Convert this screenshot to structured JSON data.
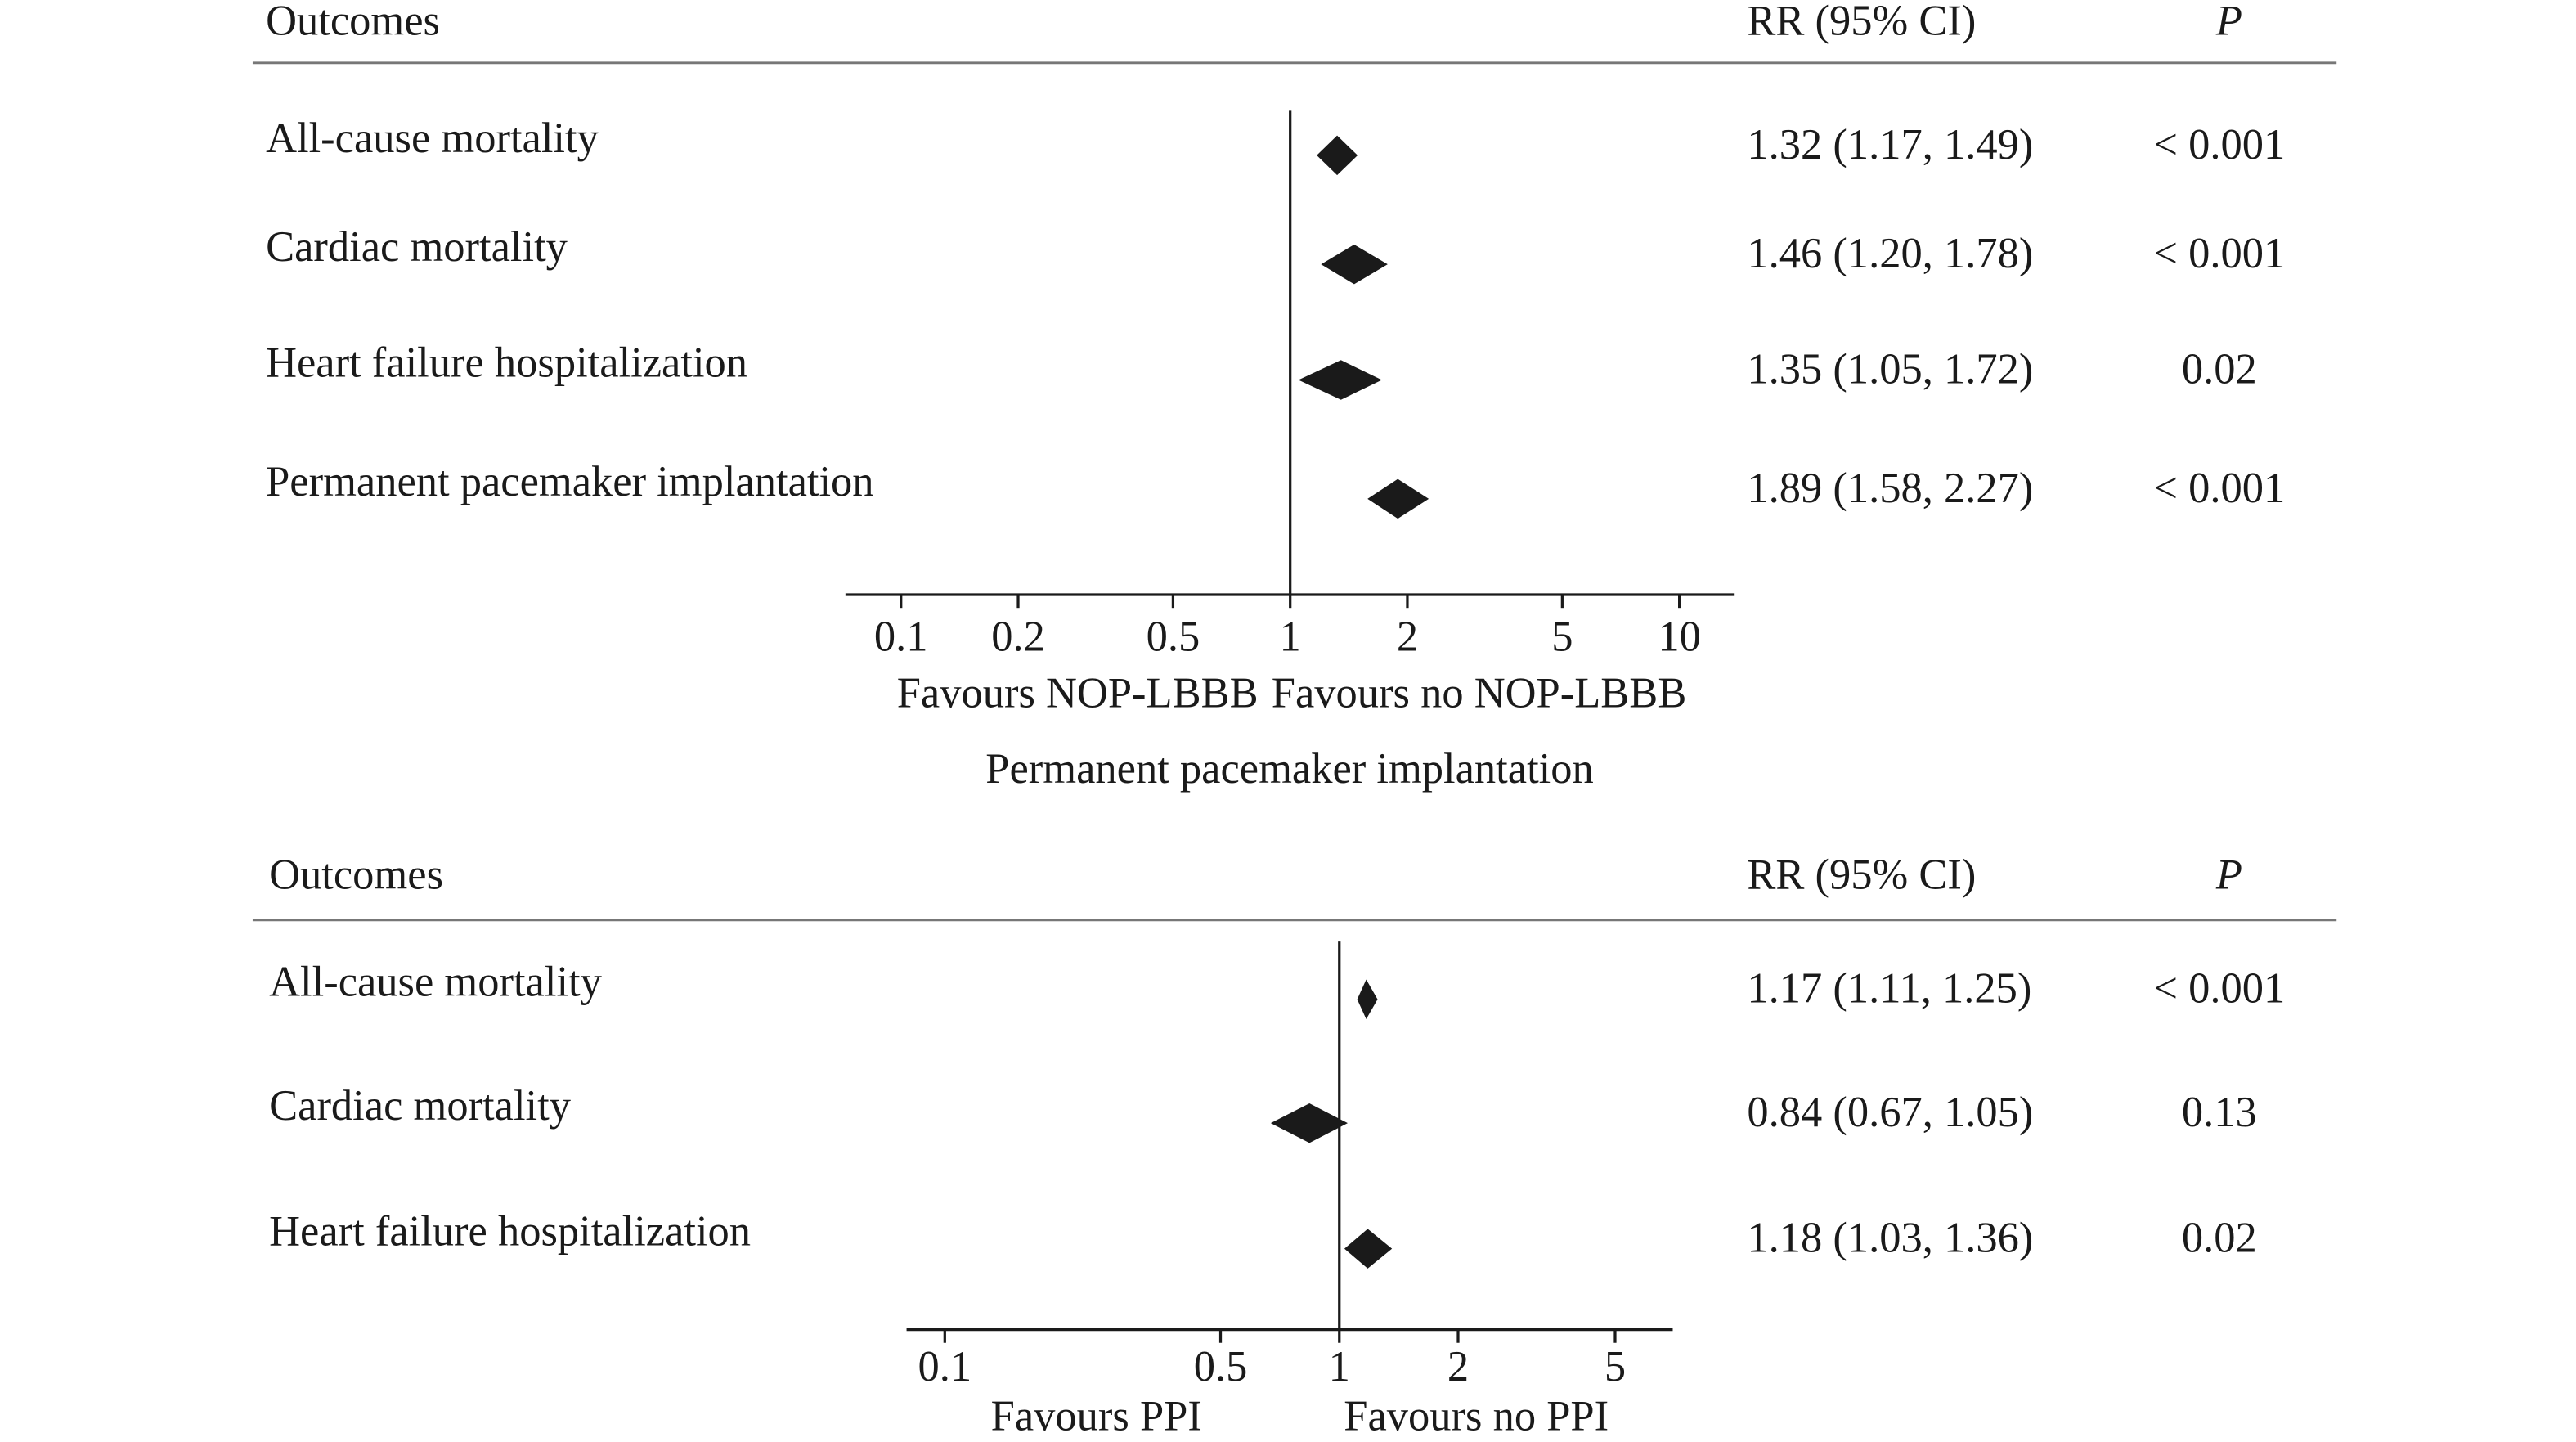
{
  "chart_data": [
    {
      "type": "forest",
      "column_headers": [
        "Outcomes",
        "RR (95% CI)",
        "P"
      ],
      "categories": [
        "All-cause mortality",
        "Cardiac mortality",
        "Heart failure hospitalization",
        "Permanent pacemaker implantation"
      ],
      "values": [
        1.32,
        1.46,
        1.35,
        1.89
      ],
      "lower": [
        1.17,
        1.2,
        1.05,
        1.58
      ],
      "upper": [
        1.49,
        1.78,
        1.72,
        2.27
      ],
      "value_labels": [
        "1.32 (1.17, 1.49)",
        "1.46 (1.20, 1.78)",
        "1.35 (1.05, 1.72)",
        "1.89 (1.58, 2.27)"
      ],
      "p_values": [
        "< 0.001",
        "< 0.001",
        "0.02",
        "< 0.001"
      ],
      "x_labels": [
        "Favours NOP-LBBB",
        "Favours no NOP-LBBB"
      ],
      "xscale": "log",
      "xlim": [
        0.072,
        13.8
      ],
      "xticks": [
        0.1,
        0.2,
        0.5,
        1,
        2,
        5,
        10
      ],
      "reference": 1,
      "color": "#1a1a1a"
    },
    {
      "type": "forest",
      "title": "Permanent pacemaker implantation",
      "column_headers": [
        "Outcomes",
        "RR (95% CI)",
        "P"
      ],
      "categories": [
        "All-cause mortality",
        "Cardiac mortality",
        "Heart failure hospitalization"
      ],
      "values": [
        1.17,
        0.84,
        1.18
      ],
      "lower": [
        1.11,
        0.67,
        1.03
      ],
      "upper": [
        1.25,
        1.05,
        1.36
      ],
      "value_labels": [
        "1.17 (1.11, 1.25)",
        "0.84 (0.67, 1.05)",
        "1.18 (1.03, 1.36)"
      ],
      "p_values": [
        "< 0.001",
        "0.13",
        "0.02"
      ],
      "x_labels": [
        "Favours PPI",
        "Favours no PPI"
      ],
      "xscale": "log",
      "xlim": [
        0.08,
        7
      ],
      "xticks": [
        0.1,
        0.5,
        1,
        2,
        5
      ],
      "reference": 1,
      "color": "#1a1a1a"
    }
  ]
}
